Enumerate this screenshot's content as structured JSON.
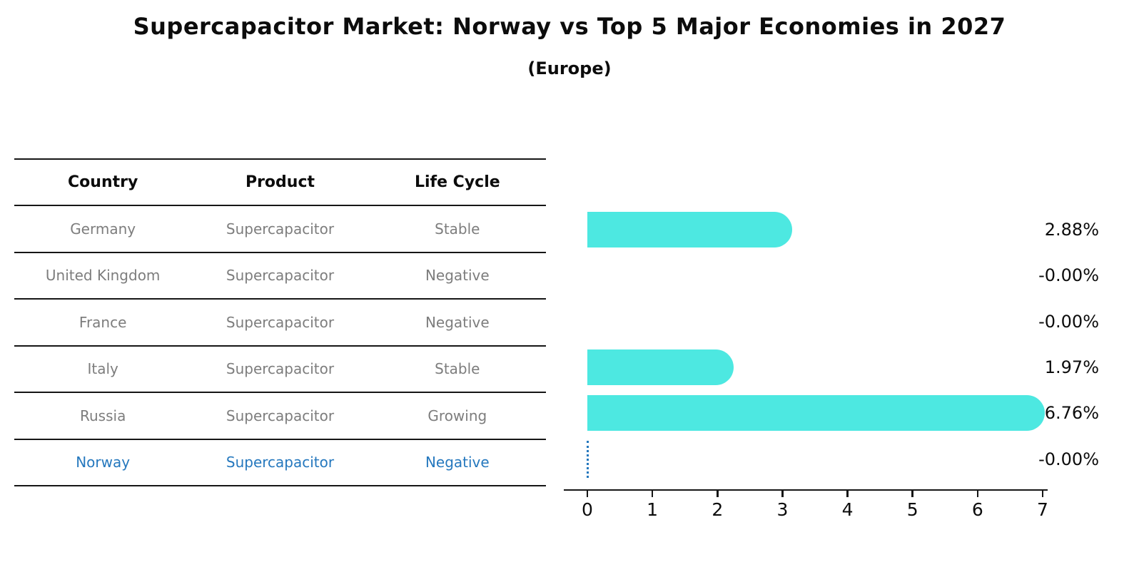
{
  "title": "Supercapacitor Market: Norway vs Top 5 Major Economies in 2027",
  "subtitle": "(Europe)",
  "table": {
    "columns": [
      "Country",
      "Product",
      "Life Cycle"
    ],
    "rows": [
      {
        "country": "Germany",
        "product": "Supercapacitor",
        "life_cycle": "Stable",
        "highlight": false
      },
      {
        "country": "United Kingdom",
        "product": "Supercapacitor",
        "life_cycle": "Negative",
        "highlight": false
      },
      {
        "country": "France",
        "product": "Supercapacitor",
        "life_cycle": "Negative",
        "highlight": false
      },
      {
        "country": "Italy",
        "product": "Supercapacitor",
        "life_cycle": "Stable",
        "highlight": false
      },
      {
        "country": "Russia",
        "product": "Supercapacitor",
        "life_cycle": "Growing",
        "highlight": true
      }
    ],
    "highlight_row": {
      "country": "Norway",
      "product": "Supercapacitor",
      "life_cycle": "Negative"
    }
  },
  "chart_data": {
    "type": "bar",
    "orientation": "horizontal",
    "title": "Supercapacitor Market: Norway vs Top 5 Major Economies in 2027 (Europe)",
    "categories": [
      "Germany",
      "United Kingdom",
      "France",
      "Italy",
      "Russia",
      "Norway"
    ],
    "values": [
      2.88,
      -0.0,
      -0.0,
      1.97,
      6.76,
      -0.0
    ],
    "value_labels": [
      "2.88%",
      "-0.00%",
      "-0.00%",
      "1.97%",
      "6.76%",
      "-0.00%"
    ],
    "xlim": [
      0,
      7
    ],
    "x_ticks": [
      "0",
      "1",
      "2",
      "3",
      "4",
      "5",
      "6",
      "7"
    ],
    "grid": false,
    "legend": "none",
    "bar_color": "#4de8e1",
    "highlight_marker": "dotted vertical line at 0 for Norway",
    "highlight_color": "#2578be"
  },
  "colors": {
    "background": "#ffffff",
    "bar": "#4de8e1",
    "table_text": "#7d7d7d",
    "heading_text": "#0c0c0c",
    "highlight_blue": "#2578be"
  }
}
